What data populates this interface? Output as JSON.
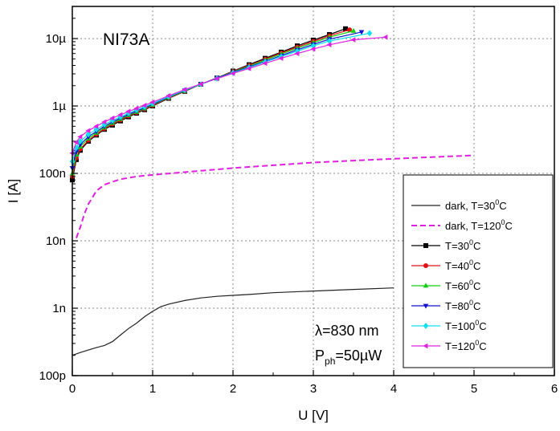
{
  "chart_data": {
    "type": "line",
    "title": "",
    "xlabel": "U [V]",
    "ylabel": "I [A]",
    "xlim": [
      0,
      6
    ],
    "ylim": [
      1e-10,
      3e-05
    ],
    "yscale": "log",
    "grid": true,
    "x_ticks": [
      0,
      1,
      2,
      3,
      4,
      5,
      6
    ],
    "x_tick_labels": [
      "0",
      "1",
      "2",
      "3",
      "4",
      "5",
      "6"
    ],
    "y_ticks": [
      1e-10,
      1e-09,
      1e-08,
      1e-07,
      1e-06,
      1e-05
    ],
    "y_tick_labels": [
      "100p",
      "1n",
      "10n",
      "100n",
      "1µ",
      "10µ"
    ],
    "legend_position": "right",
    "sample_label": "NI73A",
    "annotation_wavelength": {
      "symbol": "λ",
      "text": "=830 nm"
    },
    "annotation_power": {
      "base": "P",
      "sub": "ph",
      "rest": "=50µW"
    },
    "series": [
      {
        "name": "dark, T=30",
        "name_sup": "0",
        "name_tail": "C",
        "color": "#222222",
        "style": "solid",
        "marker": "none",
        "x": [
          0,
          0.1,
          0.2,
          0.3,
          0.4,
          0.5,
          0.6,
          0.7,
          0.8,
          0.9,
          1.0,
          1.1,
          1.2,
          1.4,
          1.6,
          1.8,
          2.0,
          2.2,
          2.5,
          3.0,
          3.5,
          4.0
        ],
        "y": [
          2e-10,
          2.2e-10,
          2.4e-10,
          2.6e-10,
          2.8e-10,
          3.2e-10,
          4e-10,
          5e-10,
          6e-10,
          7.5e-10,
          9e-10,
          1.05e-09,
          1.15e-09,
          1.3e-09,
          1.42e-09,
          1.5e-09,
          1.55e-09,
          1.6e-09,
          1.7e-09,
          1.8e-09,
          1.9e-09,
          2e-09
        ]
      },
      {
        "name": "dark, T=120",
        "name_sup": "0",
        "name_tail": "C",
        "color": "#e020e0",
        "style": "dashed",
        "marker": "none",
        "x": [
          0.05,
          0.1,
          0.15,
          0.2,
          0.3,
          0.4,
          0.5,
          0.6,
          0.8,
          1.0,
          1.5,
          2.0,
          2.5,
          3.0,
          3.5,
          4.0,
          4.5,
          5.0
        ],
        "y": [
          1.1e-08,
          1.6e-08,
          2.5e-08,
          3.5e-08,
          5.5e-08,
          6.8e-08,
          7.5e-08,
          8.2e-08,
          9e-08,
          9.5e-08,
          1.07e-07,
          1.2e-07,
          1.32e-07,
          1.45e-07,
          1.55e-07,
          1.65e-07,
          1.75e-07,
          1.85e-07
        ]
      },
      {
        "name": "T=30",
        "name_sup": "0",
        "name_tail": "C",
        "color": "#000000",
        "style": "solid",
        "marker": "square",
        "x": [
          0,
          0.05,
          0.1,
          0.2,
          0.3,
          0.4,
          0.5,
          0.6,
          0.7,
          0.8,
          0.9,
          1.0,
          1.2,
          1.4,
          1.6,
          1.8,
          2.0,
          2.2,
          2.4,
          2.6,
          2.8,
          3.0,
          3.2,
          3.4
        ],
        "y": [
          8e-08,
          1.6e-07,
          2.2e-07,
          3e-07,
          3.7e-07,
          4.5e-07,
          5.2e-07,
          6e-07,
          6.9e-07,
          7.8e-07,
          8.8e-07,
          1e-06,
          1.3e-06,
          1.65e-06,
          2.1e-06,
          2.6e-06,
          3.3e-06,
          4.1e-06,
          5.1e-06,
          6.3e-06,
          7.8e-06,
          9.5e-06,
          1.15e-05,
          1.4e-05
        ]
      },
      {
        "name": "T=40",
        "name_sup": "0",
        "name_tail": "C",
        "color": "#e01010",
        "style": "solid",
        "marker": "circle",
        "x": [
          0,
          0.05,
          0.1,
          0.2,
          0.3,
          0.4,
          0.5,
          0.6,
          0.7,
          0.8,
          0.9,
          1.0,
          1.2,
          1.4,
          1.6,
          1.8,
          2.0,
          2.2,
          2.4,
          2.6,
          2.8,
          3.0,
          3.2,
          3.45
        ],
        "y": [
          9e-08,
          1.7e-07,
          2.3e-07,
          3.1e-07,
          3.8e-07,
          4.6e-07,
          5.4e-07,
          6.2e-07,
          7.1e-07,
          8e-07,
          9e-07,
          1.02e-06,
          1.32e-06,
          1.67e-06,
          2.1e-06,
          2.6e-06,
          3.25e-06,
          4e-06,
          4.95e-06,
          6.1e-06,
          7.5e-06,
          9.1e-06,
          1.1e-05,
          1.35e-05
        ]
      },
      {
        "name": "T=60",
        "name_sup": "0",
        "name_tail": "C",
        "color": "#10d010",
        "style": "solid",
        "marker": "triangle-up",
        "x": [
          0,
          0.05,
          0.1,
          0.2,
          0.3,
          0.4,
          0.5,
          0.6,
          0.7,
          0.8,
          0.9,
          1.0,
          1.2,
          1.4,
          1.6,
          1.8,
          2.0,
          2.2,
          2.4,
          2.6,
          2.8,
          3.0,
          3.2,
          3.5
        ],
        "y": [
          1e-07,
          1.9e-07,
          2.5e-07,
          3.3e-07,
          4e-07,
          4.8e-07,
          5.6e-07,
          6.4e-07,
          7.3e-07,
          8.2e-07,
          9.2e-07,
          1.04e-06,
          1.34e-06,
          1.68e-06,
          2.1e-06,
          2.6e-06,
          3.2e-06,
          3.9e-06,
          4.8e-06,
          5.9e-06,
          7.2e-06,
          8.7e-06,
          1.05e-05,
          1.3e-05
        ]
      },
      {
        "name": "T=80",
        "name_sup": "0",
        "name_tail": "C",
        "color": "#1010d0",
        "style": "solid",
        "marker": "triangle-down",
        "x": [
          0,
          0.05,
          0.1,
          0.2,
          0.3,
          0.4,
          0.5,
          0.6,
          0.7,
          0.8,
          0.9,
          1.0,
          1.2,
          1.4,
          1.6,
          1.8,
          2.0,
          2.2,
          2.4,
          2.6,
          2.8,
          3.0,
          3.2,
          3.6
        ],
        "y": [
          1.2e-07,
          2.1e-07,
          2.7e-07,
          3.5e-07,
          4.2e-07,
          5e-07,
          5.8e-07,
          6.6e-07,
          7.5e-07,
          8.4e-07,
          9.4e-07,
          1.06e-06,
          1.36e-06,
          1.7e-06,
          2.1e-06,
          2.6e-06,
          3.15e-06,
          3.8e-06,
          4.6e-06,
          5.6e-06,
          6.8e-06,
          8.2e-06,
          9.8e-06,
          1.25e-05
        ]
      },
      {
        "name": "T=100",
        "name_sup": "0",
        "name_tail": "C",
        "color": "#10e0f0",
        "style": "solid",
        "marker": "diamond",
        "x": [
          0,
          0.05,
          0.1,
          0.2,
          0.3,
          0.4,
          0.5,
          0.6,
          0.7,
          0.8,
          0.9,
          1.0,
          1.2,
          1.4,
          1.6,
          1.8,
          2.0,
          2.2,
          2.4,
          2.6,
          2.8,
          3.0,
          3.2,
          3.7
        ],
        "y": [
          1.5e-07,
          2.4e-07,
          3e-07,
          3.8e-07,
          4.5e-07,
          5.3e-07,
          6.1e-07,
          6.9e-07,
          7.8e-07,
          8.7e-07,
          9.7e-07,
          1.09e-06,
          1.38e-06,
          1.72e-06,
          2.1e-06,
          2.55e-06,
          3.1e-06,
          3.7e-06,
          4.5e-06,
          5.4e-06,
          6.5e-06,
          7.8e-06,
          9.2e-06,
          1.2e-05
        ]
      },
      {
        "name": "T=120",
        "name_sup": "0",
        "name_tail": "C",
        "color": "#e020e0",
        "style": "solid",
        "marker": "triangle-left",
        "x": [
          0,
          0.05,
          0.1,
          0.2,
          0.3,
          0.4,
          0.5,
          0.6,
          0.7,
          0.8,
          0.9,
          1.0,
          1.2,
          1.4,
          1.6,
          1.8,
          2.0,
          2.2,
          2.4,
          2.6,
          2.8,
          3.0,
          3.2,
          3.5,
          3.9
        ],
        "y": [
          2e-07,
          2.9e-07,
          3.5e-07,
          4.3e-07,
          5e-07,
          5.8e-07,
          6.6e-07,
          7.4e-07,
          8.3e-07,
          9.2e-07,
          1.02e-06,
          1.14e-06,
          1.42e-06,
          1.75e-06,
          2.12e-06,
          2.55e-06,
          3.05e-06,
          3.6e-06,
          4.3e-06,
          5.1e-06,
          6e-06,
          7e-06,
          8.1e-06,
          9.6e-06,
          1.05e-05
        ]
      }
    ]
  }
}
